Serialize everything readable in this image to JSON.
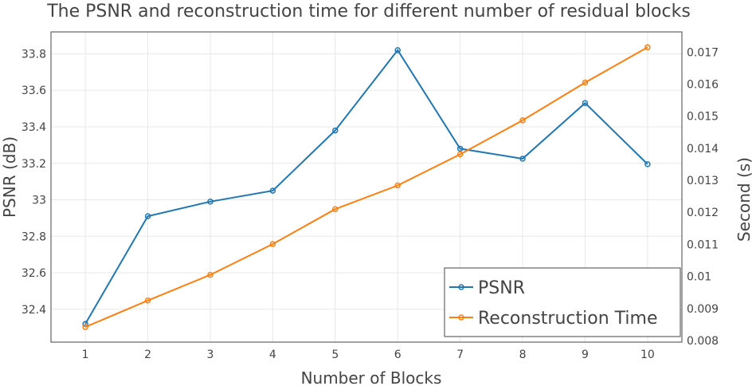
{
  "chart_data": {
    "type": "line",
    "title": "The PSNR and reconstruction time for different number of residual blocks",
    "xlabel": "Number of Blocks",
    "ylabel": "PSNR (dB)",
    "y2label": "Second (s)",
    "x": [
      1,
      2,
      3,
      4,
      5,
      6,
      7,
      8,
      9,
      10
    ],
    "x_ticks": [
      "1",
      "2",
      "3",
      "4",
      "5",
      "6",
      "7",
      "8",
      "9",
      "10"
    ],
    "xlim": [
      0.45,
      10.55
    ],
    "ylim": [
      32.22,
      33.92
    ],
    "y2lim": [
      0.00795,
      0.01763
    ],
    "y_ticks": [
      32.4,
      32.6,
      32.8,
      33.0,
      33.2,
      33.4,
      33.6,
      33.8
    ],
    "y_tick_labels": [
      "32.4",
      "32.6",
      "32.8",
      "33",
      "33.2",
      "33.4",
      "33.6",
      "33.8"
    ],
    "y2_ticks": [
      0.008,
      0.009,
      0.01,
      0.011,
      0.012,
      0.013,
      0.014,
      0.015,
      0.016,
      0.017
    ],
    "y2_tick_labels": [
      "0.008",
      "0.009",
      "0.01",
      "0.011",
      "0.012",
      "0.013",
      "0.014",
      "0.015",
      "0.016",
      "0.017"
    ],
    "grid": true,
    "legend_position": "bottom-right",
    "series": [
      {
        "name": "PSNR",
        "axis": "left",
        "color": "#1f77b4",
        "values": [
          32.32,
          32.91,
          32.99,
          33.05,
          33.38,
          33.82,
          33.28,
          33.225,
          33.53,
          33.195
        ]
      },
      {
        "name": "Reconstruction Time",
        "axis": "right",
        "color": "#ff7f0e",
        "values": [
          0.00842,
          0.00925,
          0.01005,
          0.01101,
          0.0121,
          0.01284,
          0.01381,
          0.01487,
          0.01605,
          0.01715
        ]
      }
    ]
  }
}
